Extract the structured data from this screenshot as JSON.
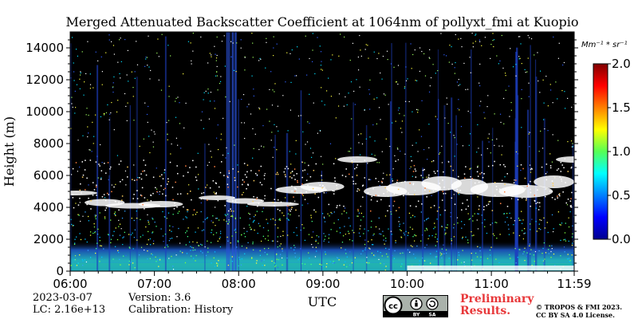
{
  "chart_data": {
    "type": "heatmap",
    "title": "Merged Attenuated Backscatter Coefficient at 1064nm of pollyxt_fmi at Kuopio",
    "xlabel": "UTC",
    "ylabel": "Height (m)",
    "x_ticks": [
      "06:00",
      "07:00",
      "08:00",
      "09:00",
      "10:00",
      "11:00",
      "11:59"
    ],
    "x_range": [
      "06:00",
      "11:59"
    ],
    "y_ticks": [
      0,
      2000,
      4000,
      6000,
      8000,
      10000,
      12000,
      14000
    ],
    "ylim": [
      0,
      15000
    ],
    "colorbar": {
      "label": "Mm⁻¹ * sr⁻¹",
      "ticks": [
        "0.0",
        "0.5",
        "1.0",
        "1.5",
        "2.0"
      ],
      "range": [
        0,
        2.0
      ],
      "colormap": "jet"
    },
    "features": [
      {
        "label": "boundary-layer aerosol",
        "height_m": [
          0,
          1000
        ],
        "time": [
          "06:00",
          "11:59"
        ],
        "level": "0.3-1.0"
      },
      {
        "label": "cloud layer",
        "height_m": [
          3800,
          6800
        ],
        "time": [
          "06:00",
          "11:59"
        ],
        "level": ">2.0"
      }
    ]
  },
  "footer": {
    "date": "2023-03-07",
    "lc": "LC: 2.16e+13",
    "version": "Version: 3.6",
    "calibration": "Calibration: History",
    "preliminary_line1": "Preliminary",
    "preliminary_line2": "Results.",
    "license_line1": "© TROPOS & FMI 2023.",
    "license_line2": "CC BY SA 4.0 License.",
    "cc_badge": {
      "cc": "cc",
      "by": "BY",
      "sa": "SA"
    }
  },
  "colors": {
    "plot_background": "#000000",
    "cloud": "#ffffff",
    "preliminary_text": "#e8383a"
  }
}
